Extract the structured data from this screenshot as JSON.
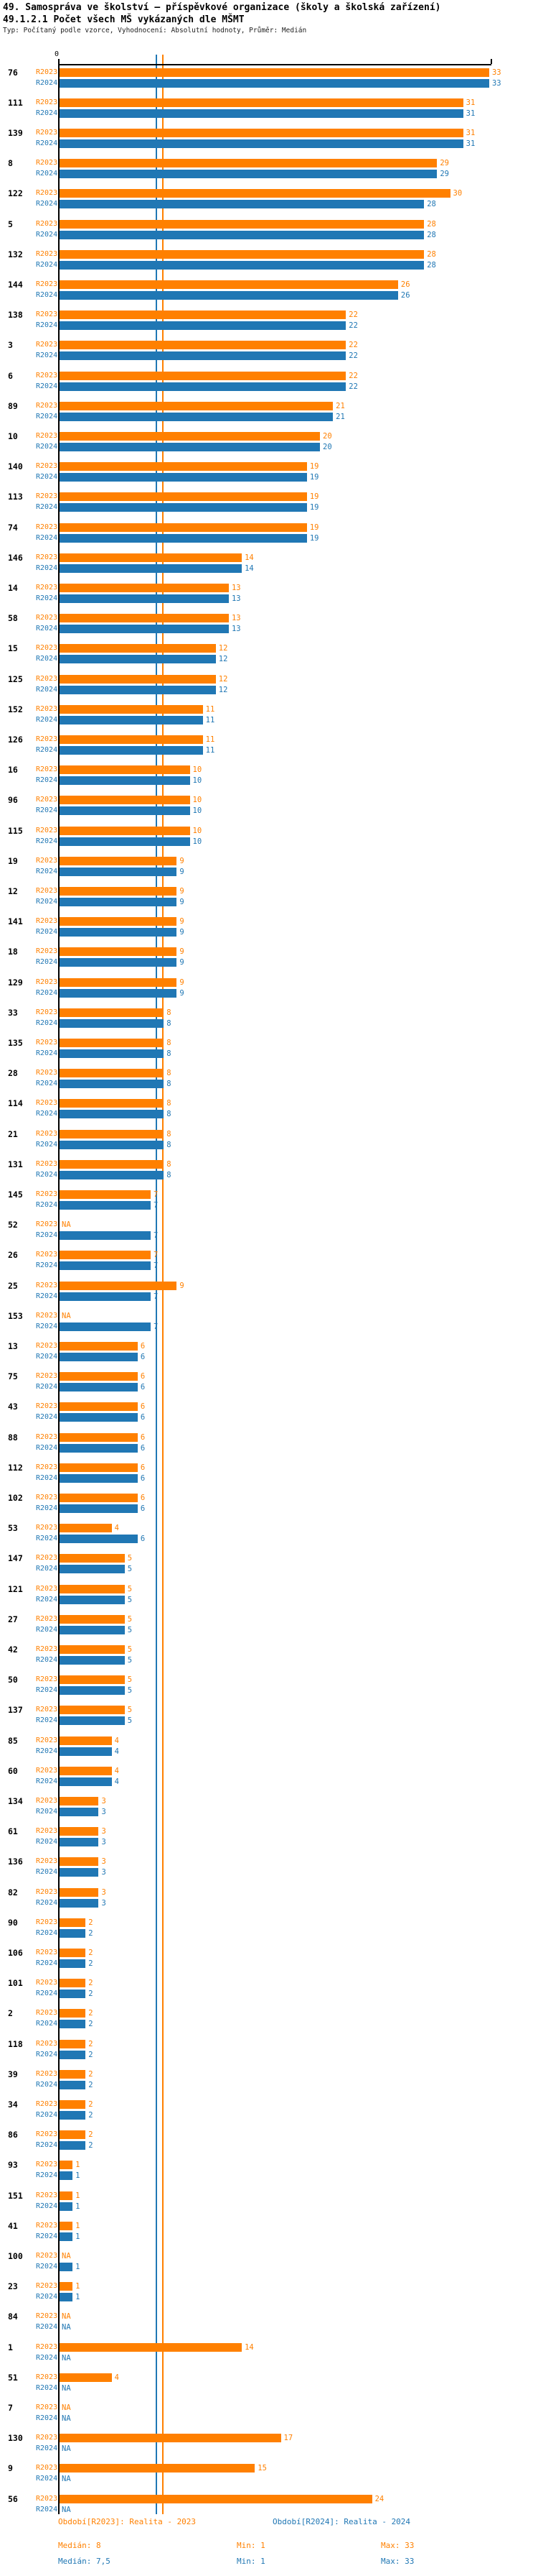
{
  "header": {
    "title": "49. Samospráva ve školství – příspěvkové organizace (školy a školská zařízení)",
    "subtitle": "49.1.2.1 Počet všech MŠ vykázaných dle MŠMT",
    "meta": "Typ: Počítaný podle vzorce, Vyhodnocení: Absolutní hodnoty, Průměr: Medián"
  },
  "chart_data": {
    "type": "bar",
    "orientation": "horizontal",
    "title": "49.1.2.1 Počet všech MŠ vykázaných dle MŠMT",
    "xlabel": "",
    "ylabel": "",
    "axis": {
      "origin_tick_label": "0",
      "xlim": [
        0,
        33
      ],
      "grid": false
    },
    "legend_position": "bottom",
    "series_labels": [
      "R2023",
      "R2024"
    ],
    "colors": {
      "r2023": "#FF8000",
      "r2024": "#2077B4"
    },
    "median_lines": {
      "r2023": 8,
      "r2024": 7.5
    },
    "na_text": "NA",
    "rows": [
      {
        "category": "76",
        "r2023": 33,
        "r2024": 33
      },
      {
        "category": "111",
        "r2023": 31,
        "r2024": 31
      },
      {
        "category": "139",
        "r2023": 31,
        "r2024": 31
      },
      {
        "category": "8",
        "r2023": 29,
        "r2024": 29
      },
      {
        "category": "122",
        "r2023": 30,
        "r2024": 28
      },
      {
        "category": "5",
        "r2023": 28,
        "r2024": 28
      },
      {
        "category": "132",
        "r2023": 28,
        "r2024": 28
      },
      {
        "category": "144",
        "r2023": 26,
        "r2024": 26
      },
      {
        "category": "138",
        "r2023": 22,
        "r2024": 22
      },
      {
        "category": "3",
        "r2023": 22,
        "r2024": 22
      },
      {
        "category": "6",
        "r2023": 22,
        "r2024": 22
      },
      {
        "category": "89",
        "r2023": 21,
        "r2024": 21
      },
      {
        "category": "10",
        "r2023": 20,
        "r2024": 20
      },
      {
        "category": "140",
        "r2023": 19,
        "r2024": 19
      },
      {
        "category": "113",
        "r2023": 19,
        "r2024": 19
      },
      {
        "category": "74",
        "r2023": 19,
        "r2024": 19
      },
      {
        "category": "146",
        "r2023": 14,
        "r2024": 14
      },
      {
        "category": "14",
        "r2023": 13,
        "r2024": 13
      },
      {
        "category": "58",
        "r2023": 13,
        "r2024": 13
      },
      {
        "category": "15",
        "r2023": 12,
        "r2024": 12
      },
      {
        "category": "125",
        "r2023": 12,
        "r2024": 12
      },
      {
        "category": "152",
        "r2023": 11,
        "r2024": 11
      },
      {
        "category": "126",
        "r2023": 11,
        "r2024": 11
      },
      {
        "category": "16",
        "r2023": 10,
        "r2024": 10
      },
      {
        "category": "96",
        "r2023": 10,
        "r2024": 10
      },
      {
        "category": "115",
        "r2023": 10,
        "r2024": 10
      },
      {
        "category": "19",
        "r2023": 9,
        "r2024": 9
      },
      {
        "category": "12",
        "r2023": 9,
        "r2024": 9
      },
      {
        "category": "141",
        "r2023": 9,
        "r2024": 9
      },
      {
        "category": "18",
        "r2023": 9,
        "r2024": 9
      },
      {
        "category": "129",
        "r2023": 9,
        "r2024": 9
      },
      {
        "category": "33",
        "r2023": 8,
        "r2024": 8
      },
      {
        "category": "135",
        "r2023": 8,
        "r2024": 8
      },
      {
        "category": "28",
        "r2023": 8,
        "r2024": 8
      },
      {
        "category": "114",
        "r2023": 8,
        "r2024": 8
      },
      {
        "category": "21",
        "r2023": 8,
        "r2024": 8
      },
      {
        "category": "131",
        "r2023": 8,
        "r2024": 8
      },
      {
        "category": "145",
        "r2023": 7,
        "r2024": 7
      },
      {
        "category": "52",
        "r2023": "NA",
        "r2024": 7
      },
      {
        "category": "26",
        "r2023": 7,
        "r2024": 7
      },
      {
        "category": "25",
        "r2023": 9,
        "r2024": 7
      },
      {
        "category": "153",
        "r2023": "NA",
        "r2024": 7
      },
      {
        "category": "13",
        "r2023": 6,
        "r2024": 6
      },
      {
        "category": "75",
        "r2023": 6,
        "r2024": 6
      },
      {
        "category": "43",
        "r2023": 6,
        "r2024": 6
      },
      {
        "category": "88",
        "r2023": 6,
        "r2024": 6
      },
      {
        "category": "112",
        "r2023": 6,
        "r2024": 6
      },
      {
        "category": "102",
        "r2023": 6,
        "r2024": 6
      },
      {
        "category": "53",
        "r2023": 4,
        "r2024": 6
      },
      {
        "category": "147",
        "r2023": 5,
        "r2024": 5
      },
      {
        "category": "121",
        "r2023": 5,
        "r2024": 5
      },
      {
        "category": "27",
        "r2023": 5,
        "r2024": 5
      },
      {
        "category": "42",
        "r2023": 5,
        "r2024": 5
      },
      {
        "category": "50",
        "r2023": 5,
        "r2024": 5
      },
      {
        "category": "137",
        "r2023": 5,
        "r2024": 5
      },
      {
        "category": "85",
        "r2023": 4,
        "r2024": 4
      },
      {
        "category": "60",
        "r2023": 4,
        "r2024": 4
      },
      {
        "category": "134",
        "r2023": 3,
        "r2024": 3
      },
      {
        "category": "61",
        "r2023": 3,
        "r2024": 3
      },
      {
        "category": "136",
        "r2023": 3,
        "r2024": 3
      },
      {
        "category": "82",
        "r2023": 3,
        "r2024": 3
      },
      {
        "category": "90",
        "r2023": 2,
        "r2024": 2
      },
      {
        "category": "106",
        "r2023": 2,
        "r2024": 2
      },
      {
        "category": "101",
        "r2023": 2,
        "r2024": 2
      },
      {
        "category": "2",
        "r2023": 2,
        "r2024": 2
      },
      {
        "category": "118",
        "r2023": 2,
        "r2024": 2
      },
      {
        "category": "39",
        "r2023": 2,
        "r2024": 2
      },
      {
        "category": "34",
        "r2023": 2,
        "r2024": 2
      },
      {
        "category": "86",
        "r2023": 2,
        "r2024": 2
      },
      {
        "category": "93",
        "r2023": 1,
        "r2024": 1
      },
      {
        "category": "151",
        "r2023": 1,
        "r2024": 1
      },
      {
        "category": "41",
        "r2023": 1,
        "r2024": 1
      },
      {
        "category": "100",
        "r2023": "NA",
        "r2024": 1
      },
      {
        "category": "23",
        "r2023": 1,
        "r2024": 1
      },
      {
        "category": "84",
        "r2023": "NA",
        "r2024": "NA"
      },
      {
        "category": "1",
        "r2023": 14,
        "r2024": "NA"
      },
      {
        "category": "51",
        "r2023": 4,
        "r2024": "NA"
      },
      {
        "category": "7",
        "r2023": "NA",
        "r2024": "NA"
      },
      {
        "category": "130",
        "r2023": 17,
        "r2024": "NA"
      },
      {
        "category": "9",
        "r2023": 15,
        "r2024": "NA"
      },
      {
        "category": "56",
        "r2023": 24,
        "r2024": "NA"
      }
    ]
  },
  "footer": {
    "legend": {
      "r2023": "Období[R2023]: Realita - 2023",
      "r2024": "Období[R2024]: Realita - 2024"
    },
    "stats_r2023": {
      "median": "Medián: 8",
      "min": "Min: 1",
      "max": "Max: 33"
    },
    "stats_r2024": {
      "median": "Medián: 7,5",
      "min": "Min: 1",
      "max": "Max: 33"
    }
  }
}
